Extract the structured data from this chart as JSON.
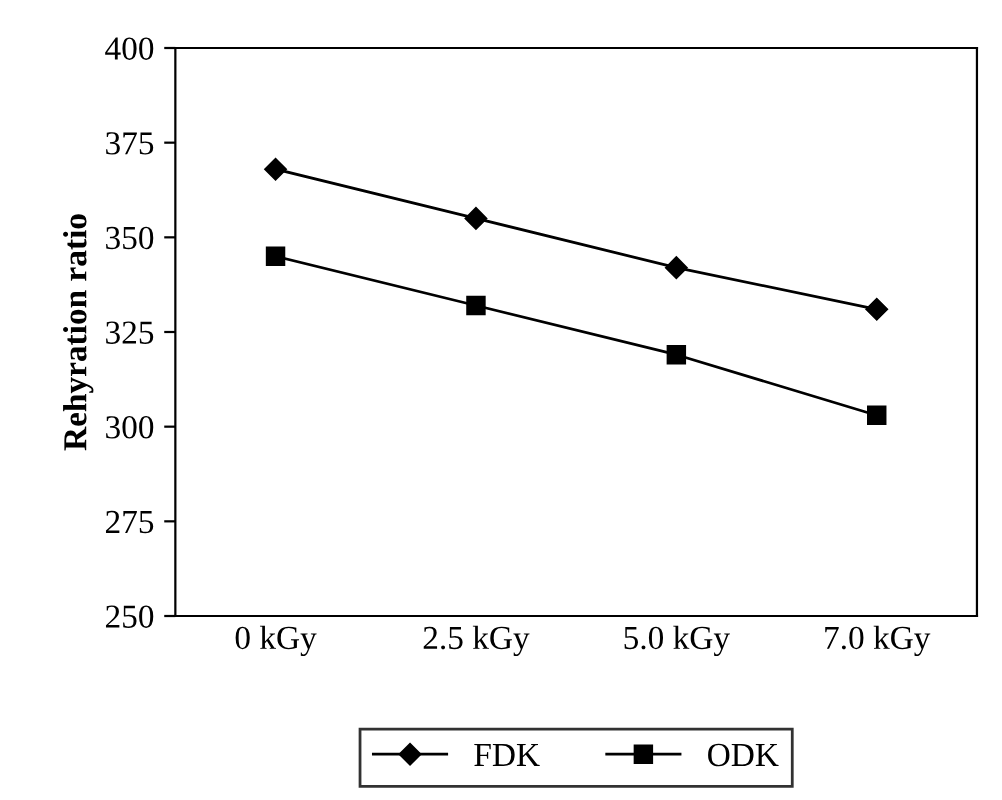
{
  "chart_data": {
    "type": "line",
    "ylabel": "Rehyration ratio",
    "categories": [
      "0 kGy",
      "2.5 kGy",
      "5.0 kGy",
      "7.0 kGy"
    ],
    "series": [
      {
        "name": "FDK",
        "color": "#000000",
        "values": [
          368,
          355,
          342,
          331
        ],
        "marker": "diamond"
      },
      {
        "name": "ODK",
        "color": "#000000",
        "values": [
          345,
          332,
          319,
          303
        ],
        "marker": "square"
      }
    ],
    "ylim": [
      250,
      400
    ],
    "yticks": [
      250,
      275,
      300,
      325,
      350,
      375,
      400
    ],
    "grid": false,
    "legend": "bottom",
    "line_style": "solid"
  }
}
